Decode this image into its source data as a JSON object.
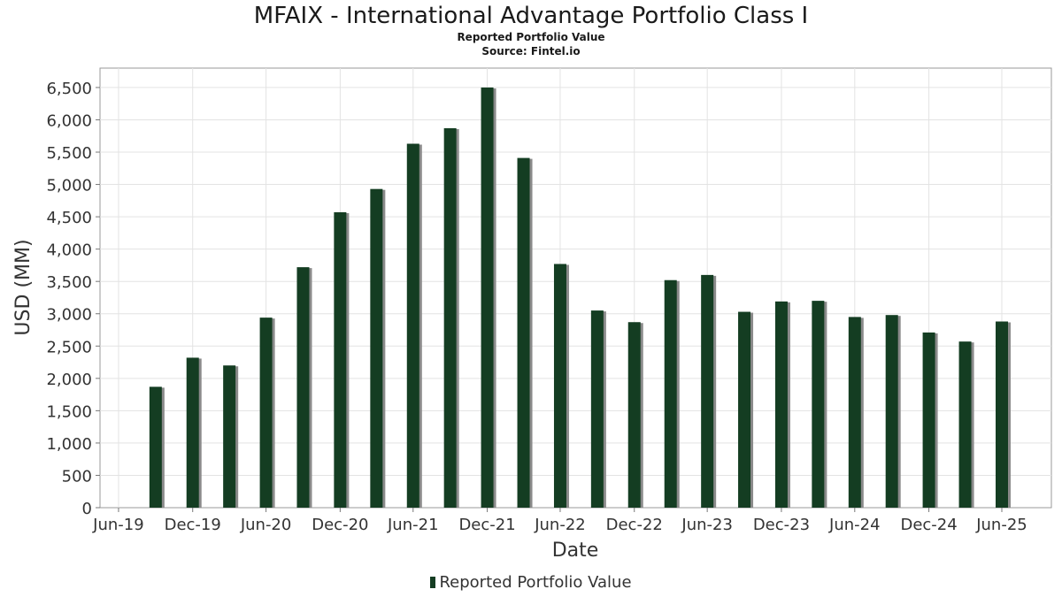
{
  "title": "MFAIX - International Advantage Portfolio Class I",
  "subtitle": "Reported Portfolio Value",
  "source": "Source: Fintel.io",
  "chart_data": {
    "type": "bar",
    "xlabel": "Date",
    "ylabel": "USD (MM)",
    "ylim": [
      0,
      6800
    ],
    "yticks": [
      0,
      500,
      1000,
      1500,
      2000,
      2500,
      3000,
      3500,
      4000,
      4500,
      5000,
      5500,
      6000,
      6500
    ],
    "ytick_labels": [
      "0",
      "500",
      "1,000",
      "1,500",
      "2,000",
      "2,500",
      "3,000",
      "3,500",
      "4,000",
      "4,500",
      "5,000",
      "5,500",
      "6,000",
      "6,500"
    ],
    "xlim": [
      "2019-05-15",
      "2025-10-31"
    ],
    "xticks": [
      "2019-06-30",
      "2019-12-31",
      "2020-06-30",
      "2020-12-31",
      "2021-06-30",
      "2021-12-31",
      "2022-06-30",
      "2022-12-31",
      "2023-06-30",
      "2023-12-31",
      "2024-06-30",
      "2024-12-31",
      "2025-06-30"
    ],
    "xtick_labels": [
      "Jun-19",
      "Dec-19",
      "Jun-20",
      "Dec-20",
      "Jun-21",
      "Dec-21",
      "Jun-22",
      "Dec-22",
      "Jun-23",
      "Dec-23",
      "Jun-24",
      "Dec-24",
      "Jun-25"
    ],
    "grid": true,
    "legend_position": "bottom-center",
    "series": [
      {
        "name": "Reported Portfolio Value",
        "color": "#143d22",
        "shadow_color": "#8a8a8a",
        "points": [
          {
            "x": "2019-09-30",
            "y": 1870
          },
          {
            "x": "2019-12-31",
            "y": 2320
          },
          {
            "x": "2020-03-31",
            "y": 2200
          },
          {
            "x": "2020-06-30",
            "y": 2940
          },
          {
            "x": "2020-09-30",
            "y": 3720
          },
          {
            "x": "2020-12-31",
            "y": 4570
          },
          {
            "x": "2021-03-31",
            "y": 4930
          },
          {
            "x": "2021-06-30",
            "y": 5630
          },
          {
            "x": "2021-09-30",
            "y": 5870
          },
          {
            "x": "2021-12-31",
            "y": 6500
          },
          {
            "x": "2022-03-31",
            "y": 5410
          },
          {
            "x": "2022-06-30",
            "y": 3770
          },
          {
            "x": "2022-09-30",
            "y": 3050
          },
          {
            "x": "2022-12-31",
            "y": 2870
          },
          {
            "x": "2023-03-31",
            "y": 3520
          },
          {
            "x": "2023-06-30",
            "y": 3600
          },
          {
            "x": "2023-09-30",
            "y": 3030
          },
          {
            "x": "2023-12-31",
            "y": 3190
          },
          {
            "x": "2024-03-31",
            "y": 3200
          },
          {
            "x": "2024-06-30",
            "y": 2950
          },
          {
            "x": "2024-09-30",
            "y": 2980
          },
          {
            "x": "2024-12-31",
            "y": 2710
          },
          {
            "x": "2025-03-31",
            "y": 2570
          },
          {
            "x": "2025-06-30",
            "y": 2880
          }
        ]
      }
    ]
  }
}
